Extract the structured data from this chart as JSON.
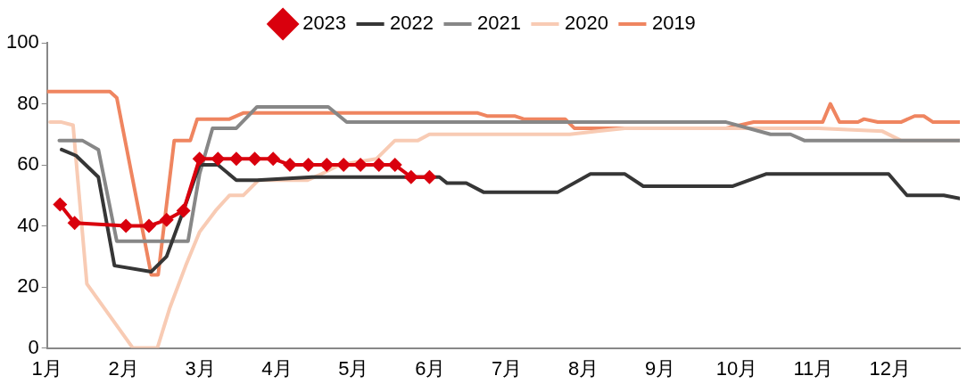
{
  "chart_data": {
    "type": "line",
    "xlim": [
      1,
      12.91
    ],
    "xticks": [
      {
        "value": 1,
        "label": "1月"
      },
      {
        "value": 2,
        "label": "2月"
      },
      {
        "value": 3,
        "label": "3月"
      },
      {
        "value": 4,
        "label": "4月"
      },
      {
        "value": 5,
        "label": "5月"
      },
      {
        "value": 6,
        "label": "6月"
      },
      {
        "value": 7,
        "label": "7月"
      },
      {
        "value": 8,
        "label": "8月"
      },
      {
        "value": 9,
        "label": "9月"
      },
      {
        "value": 10,
        "label": "10月"
      },
      {
        "value": 11,
        "label": "11月"
      },
      {
        "value": 12,
        "label": "12月"
      }
    ],
    "ylim": [
      0,
      100
    ],
    "yticks": [
      0,
      20,
      40,
      60,
      80,
      100
    ],
    "grid": false,
    "legend": "top",
    "line_style": "solid",
    "series": [
      {
        "name": "2023",
        "color": "#d9000d",
        "marker": "diamond",
        "x": [
          1.17,
          1.36,
          2.03,
          2.33,
          2.56,
          2.78,
          2.99,
          3.23,
          3.47,
          3.71,
          3.95,
          4.17,
          4.41,
          4.65,
          4.87,
          5.09,
          5.33,
          5.54,
          5.75,
          5.99
        ],
        "values": [
          47,
          41,
          40,
          40,
          42,
          45,
          62,
          62,
          62,
          62,
          62,
          60,
          60,
          60,
          60,
          60,
          60,
          60,
          56,
          56
        ]
      },
      {
        "name": "2022",
        "color": "#363636",
        "x": [
          1.19,
          1.38,
          1.67,
          1.88,
          2.36,
          2.56,
          2.78,
          2.99,
          3.23,
          3.47,
          3.74,
          4.46,
          4.94,
          6.12,
          6.22,
          6.47,
          6.7,
          7.66,
          8.09,
          8.54,
          8.78,
          9.94,
          10.38,
          11.98,
          12.22,
          12.7,
          12.91
        ],
        "values": [
          65,
          63,
          56,
          27,
          25,
          30,
          45,
          60,
          60,
          55,
          55,
          56,
          56,
          56,
          54,
          54,
          51,
          51,
          57,
          57,
          53,
          53,
          57,
          57,
          50,
          50,
          49
        ]
      },
      {
        "name": "2021",
        "color": "#878787",
        "x": [
          1.16,
          1.46,
          1.67,
          1.91,
          2.84,
          2.99,
          3.16,
          3.47,
          3.74,
          4.67,
          4.91,
          9.86,
          10.44,
          10.7,
          10.88,
          12.91
        ],
        "values": [
          68,
          68,
          65,
          35,
          35,
          57,
          72,
          72,
          79,
          79,
          74,
          74,
          70,
          70,
          68,
          68
        ]
      },
      {
        "name": "2020",
        "color": "#f8cbb4",
        "x": [
          1.04,
          1.19,
          1.34,
          1.52,
          2.12,
          2.44,
          2.6,
          2.81,
          2.99,
          3.2,
          3.38,
          3.56,
          3.76,
          4.4,
          4.58,
          4.82,
          5.3,
          5.54,
          5.84,
          5.99,
          7.82,
          8.18,
          8.54,
          11.06,
          11.9,
          12.14,
          12.91
        ],
        "values": [
          74,
          74,
          73,
          21,
          0,
          0,
          13,
          27,
          38,
          45,
          50,
          50,
          55,
          55,
          57,
          60,
          62,
          68,
          68,
          70,
          70,
          71,
          72,
          72,
          71,
          68,
          68
        ]
      },
      {
        "name": "2019",
        "color": "#ef8560",
        "x": [
          1,
          1.82,
          1.91,
          2.36,
          2.45,
          2.66,
          2.87,
          2.96,
          3.38,
          3.56,
          6.62,
          6.74,
          7.1,
          7.22,
          7.76,
          7.88,
          9.86,
          10.22,
          11.12,
          11.22,
          11.34,
          11.58,
          11.66,
          11.84,
          12.14,
          12.32,
          12.44,
          12.56,
          12.91
        ],
        "values": [
          84,
          84,
          82,
          24,
          24,
          68,
          68,
          75,
          75,
          77,
          77,
          76,
          76,
          75,
          75,
          72,
          72,
          74,
          74,
          80,
          74,
          74,
          75,
          74,
          74,
          76,
          76,
          74,
          74
        ]
      }
    ]
  }
}
